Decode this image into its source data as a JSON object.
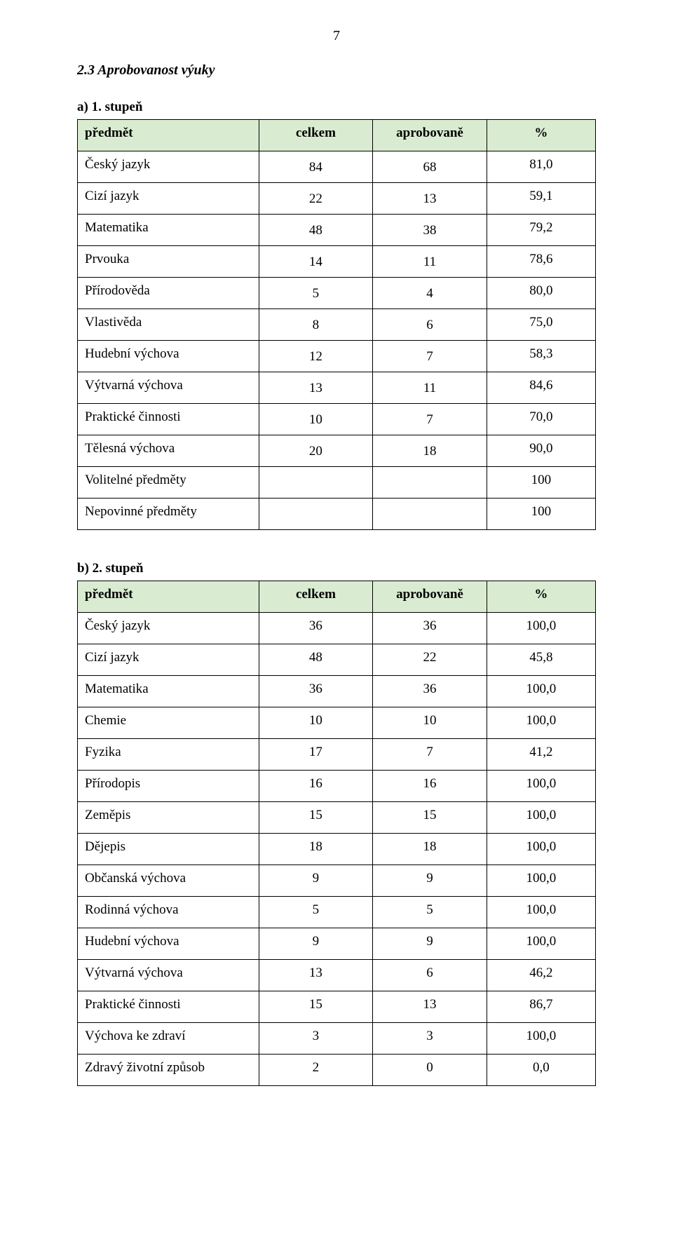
{
  "page_number": "7",
  "section_title": "2.3 Aprobovanost výuky",
  "colors": {
    "header_bg": "#d9ecd1",
    "border": "#000000",
    "text": "#000000",
    "background": "#ffffff"
  },
  "typography": {
    "base_family": "Times New Roman",
    "base_size_pt": 14,
    "title_italic_bold_pt": 15,
    "sub_bold_pt": 14
  },
  "table_a": {
    "heading": "a) 1. stupeň",
    "columns": [
      "předmět",
      "celkem",
      "aprobovaně",
      "%"
    ],
    "rows": [
      {
        "label": "Český jazyk",
        "celkem": "84",
        "aprob": "68",
        "pct": "81,0"
      },
      {
        "label": "Cizí jazyk",
        "celkem": "22",
        "aprob": "13",
        "pct": "59,1"
      },
      {
        "label": "Matematika",
        "celkem": "48",
        "aprob": "38",
        "pct": "79,2"
      },
      {
        "label": "Prvouka",
        "celkem": "14",
        "aprob": "11",
        "pct": "78,6"
      },
      {
        "label": "Přírodověda",
        "celkem": "5",
        "aprob": "4",
        "pct": "80,0"
      },
      {
        "label": "Vlastivěda",
        "celkem": "8",
        "aprob": "6",
        "pct": "75,0"
      },
      {
        "label": "Hudební výchova",
        "celkem": "12",
        "aprob": "7",
        "pct": "58,3"
      },
      {
        "label": "Výtvarná výchova",
        "celkem": "13",
        "aprob": "11",
        "pct": "84,6"
      },
      {
        "label": "Praktické činnosti",
        "celkem": "10",
        "aprob": "7",
        "pct": "70,0"
      },
      {
        "label": "Tělesná výchova",
        "celkem": "20",
        "aprob": "18",
        "pct": "90,0"
      },
      {
        "label": "Volitelné předměty",
        "celkem": "",
        "aprob": "",
        "pct": "100"
      },
      {
        "label": "Nepovinné předměty",
        "celkem": "",
        "aprob": "",
        "pct": "100"
      }
    ]
  },
  "table_b": {
    "heading": "b) 2. stupeň",
    "columns": [
      "předmět",
      "celkem",
      "aprobovaně",
      "%"
    ],
    "rows": [
      {
        "label": "Český jazyk",
        "celkem": "36",
        "aprob": "36",
        "pct": "100,0"
      },
      {
        "label": "Cizí jazyk",
        "celkem": "48",
        "aprob": "22",
        "pct": "45,8"
      },
      {
        "label": "Matematika",
        "celkem": "36",
        "aprob": "36",
        "pct": "100,0"
      },
      {
        "label": "Chemie",
        "celkem": "10",
        "aprob": "10",
        "pct": "100,0"
      },
      {
        "label": "Fyzika",
        "celkem": "17",
        "aprob": "7",
        "pct": "41,2"
      },
      {
        "label": "Přírodopis",
        "celkem": "16",
        "aprob": "16",
        "pct": "100,0"
      },
      {
        "label": "Zeměpis",
        "celkem": "15",
        "aprob": "15",
        "pct": "100,0"
      },
      {
        "label": "Dějepis",
        "celkem": "18",
        "aprob": "18",
        "pct": "100,0"
      },
      {
        "label": "Občanská výchova",
        "celkem": "9",
        "aprob": "9",
        "pct": "100,0"
      },
      {
        "label": "Rodinná výchova",
        "celkem": "5",
        "aprob": "5",
        "pct": "100,0"
      },
      {
        "label": "Hudební výchova",
        "celkem": "9",
        "aprob": "9",
        "pct": "100,0"
      },
      {
        "label": "Výtvarná výchova",
        "celkem": "13",
        "aprob": "6",
        "pct": "46,2"
      },
      {
        "label": "Praktické činnosti",
        "celkem": "15",
        "aprob": "13",
        "pct": "86,7"
      },
      {
        "label": "Výchova ke zdraví",
        "celkem": "3",
        "aprob": "3",
        "pct": "100,0"
      },
      {
        "label": "Zdravý životní způsob",
        "celkem": "2",
        "aprob": "0",
        "pct": "0,0"
      }
    ]
  }
}
